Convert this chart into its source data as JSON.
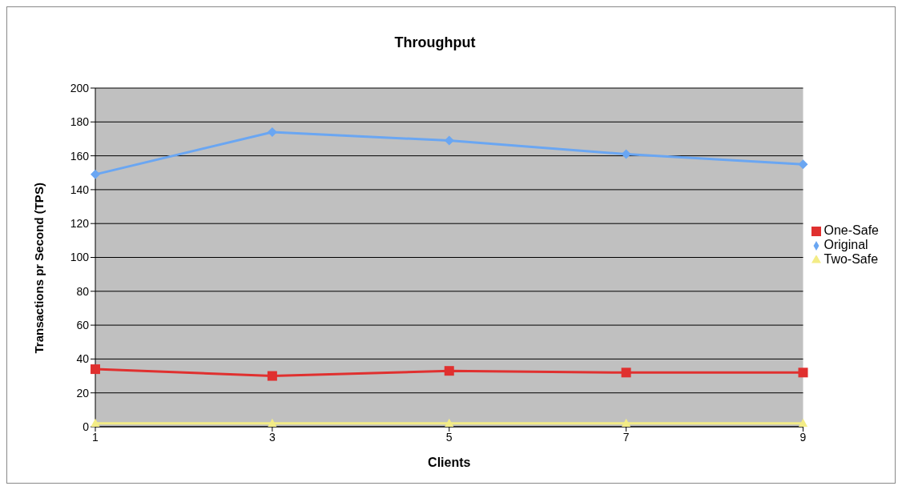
{
  "chart_data": {
    "type": "line",
    "title": "Throughput",
    "xlabel": "Clients",
    "ylabel": "Transactions pr Second (TPS)",
    "categories": [
      "1",
      "3",
      "5",
      "7",
      "9"
    ],
    "series": [
      {
        "name": "Original",
        "color": "#6aa6f2",
        "marker": "diamond",
        "values": [
          149,
          174,
          169,
          161,
          155
        ]
      },
      {
        "name": "One-Safe",
        "color": "#e0302f",
        "marker": "square",
        "values": [
          34,
          30,
          33,
          32,
          32
        ]
      },
      {
        "name": "Two-Safe",
        "color": "#f3ec86",
        "marker": "triangle",
        "values": [
          2,
          2,
          2,
          2,
          2
        ]
      }
    ],
    "ylim": [
      0,
      200
    ],
    "yticks": [
      0,
      20,
      40,
      60,
      80,
      100,
      120,
      140,
      160,
      180,
      200
    ],
    "grid": "y",
    "legend": "right",
    "line_style": "solid"
  }
}
